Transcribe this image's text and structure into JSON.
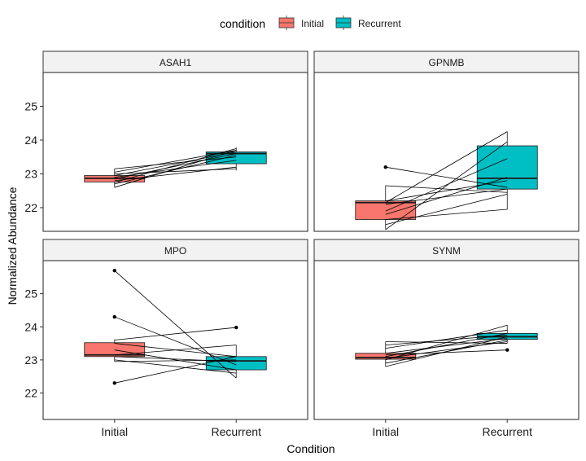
{
  "chart_data": {
    "type": "box",
    "xlabel": "Condition",
    "ylabel": "Normalized Abundance",
    "categories": [
      "Initial",
      "Recurrent"
    ],
    "legend": {
      "title": "condition",
      "position": "top",
      "entries": [
        {
          "name": "Initial",
          "color": "#F8766D"
        },
        {
          "name": "Recurrent",
          "color": "#00BFC4"
        }
      ]
    },
    "rows": [
      {
        "ylim": [
          21.3,
          26.0
        ],
        "yticks": [
          22,
          23,
          24,
          25
        ]
      },
      {
        "ylim": [
          21.2,
          26.0
        ],
        "yticks": [
          22,
          23,
          24,
          25
        ]
      }
    ],
    "panels": [
      {
        "title": "ASAH1",
        "boxes": [
          {
            "q1": 22.76,
            "median": 22.87,
            "q3": 22.95,
            "whisker_low": 22.6,
            "whisker_high": 23.15,
            "outliers": []
          },
          {
            "q1": 23.3,
            "median": 23.6,
            "q3": 23.65,
            "whisker_low": 23.1,
            "whisker_high": 23.78,
            "outliers": []
          }
        ],
        "pairs": [
          [
            22.6,
            23.7
          ],
          [
            22.7,
            23.55
          ],
          [
            22.75,
            23.75
          ],
          [
            22.8,
            23.2
          ],
          [
            22.85,
            23.6
          ],
          [
            22.9,
            23.4
          ],
          [
            22.95,
            23.65
          ],
          [
            23.0,
            23.15
          ],
          [
            23.05,
            23.7
          ],
          [
            23.15,
            23.5
          ]
        ]
      },
      {
        "title": "GPNMB",
        "boxes": [
          {
            "q1": 21.65,
            "median": 22.15,
            "q3": 22.2,
            "whisker_low": 21.35,
            "whisker_high": 22.65,
            "outliers": [
              23.2
            ]
          },
          {
            "q1": 22.55,
            "median": 22.87,
            "q3": 23.83,
            "whisker_low": 21.95,
            "whisker_high": 24.25,
            "outliers": []
          }
        ],
        "pairs": [
          [
            21.35,
            23.95
          ],
          [
            21.5,
            22.4
          ],
          [
            21.65,
            21.95
          ],
          [
            21.8,
            22.9
          ],
          [
            21.9,
            23.45
          ],
          [
            22.1,
            22.55
          ],
          [
            22.15,
            24.25
          ],
          [
            22.2,
            22.8
          ],
          [
            22.65,
            22.45
          ],
          [
            23.2,
            22.6
          ]
        ]
      },
      {
        "title": "MPO",
        "boxes": [
          {
            "q1": 23.1,
            "median": 23.15,
            "q3": 23.52,
            "whisker_low": 22.95,
            "whisker_high": 23.62,
            "outliers": [
              22.3,
              24.3,
              25.7
            ]
          },
          {
            "q1": 22.7,
            "median": 22.97,
            "q3": 23.1,
            "whisker_low": 22.45,
            "whisker_high": 23.45,
            "outliers": [
              23.98
            ]
          }
        ],
        "pairs": [
          [
            25.7,
            22.45
          ],
          [
            24.3,
            22.85
          ],
          [
            23.6,
            23.98
          ],
          [
            23.5,
            23.1
          ],
          [
            23.3,
            22.7
          ],
          [
            23.15,
            23.45
          ],
          [
            23.1,
            22.95
          ],
          [
            23.0,
            22.6
          ],
          [
            22.95,
            23.0
          ],
          [
            22.3,
            23.1
          ]
        ]
      },
      {
        "title": "SYNM",
        "boxes": [
          {
            "q1": 23.02,
            "median": 23.07,
            "q3": 23.2,
            "whisker_low": 22.8,
            "whisker_high": 23.55,
            "outliers": []
          },
          {
            "q1": 23.62,
            "median": 23.7,
            "q3": 23.8,
            "whisker_low": 23.5,
            "whisker_high": 24.05,
            "outliers": [
              23.3
            ]
          }
        ],
        "pairs": [
          [
            22.8,
            23.7
          ],
          [
            22.9,
            23.6
          ],
          [
            23.0,
            24.05
          ],
          [
            23.05,
            23.55
          ],
          [
            23.1,
            23.8
          ],
          [
            23.15,
            23.3
          ],
          [
            23.2,
            23.65
          ],
          [
            23.35,
            23.9
          ],
          [
            23.45,
            23.75
          ],
          [
            23.55,
            23.5
          ]
        ]
      }
    ]
  }
}
